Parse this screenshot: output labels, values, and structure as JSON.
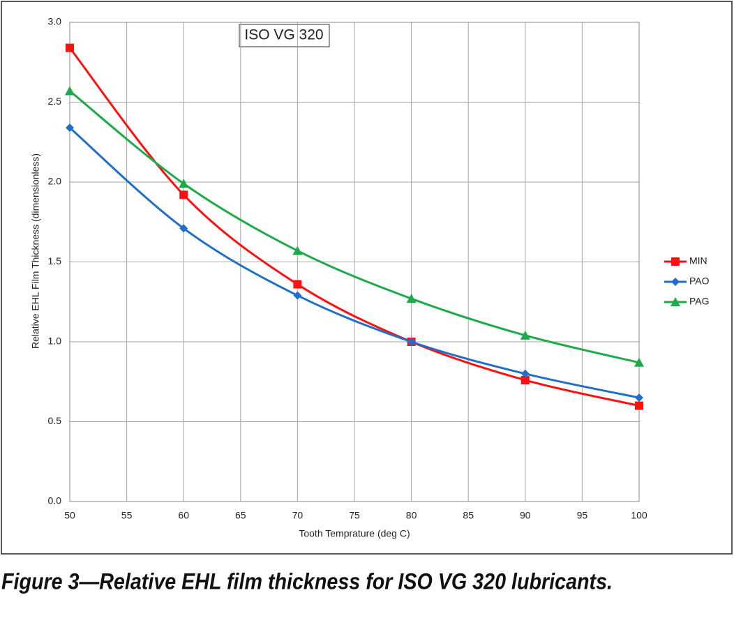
{
  "chart_data": {
    "type": "line",
    "title": "ISO VG 320",
    "x_label": "Tooth Temprature (deg C)",
    "y_label": "Relative EHL Film Thickness (dimensionless)",
    "caption": "Figure 3—Relative EHL film thickness for ISO VG 320 lubricants.",
    "x": [
      50,
      60,
      70,
      80,
      90,
      100
    ],
    "series": [
      {
        "name": "MIN",
        "color": "#ff1010",
        "marker": "square",
        "values": [
          2.84,
          1.92,
          1.36,
          1.0,
          0.76,
          0.6
        ]
      },
      {
        "name": "PAO",
        "color": "#1f6fc8",
        "marker": "diamond",
        "values": [
          2.34,
          1.71,
          1.29,
          1.0,
          0.8,
          0.65
        ]
      },
      {
        "name": "PAG",
        "color": "#1cab48",
        "marker": "triangle",
        "values": [
          2.57,
          1.99,
          1.57,
          1.27,
          1.04,
          0.87
        ]
      }
    ],
    "xlim": [
      50,
      100
    ],
    "xticks": [
      50,
      55,
      60,
      65,
      70,
      75,
      80,
      85,
      90,
      95,
      100
    ],
    "ylim": [
      0,
      3
    ],
    "yticks": [
      {
        "value": 0,
        "label": "0.0"
      },
      0.5,
      {
        "value": 1,
        "label": "1.0"
      },
      1.5,
      {
        "value": 2,
        "label": "2.0"
      },
      2.5,
      {
        "value": 3,
        "label": "3.0"
      }
    ],
    "grid": true,
    "legend": "right"
  }
}
